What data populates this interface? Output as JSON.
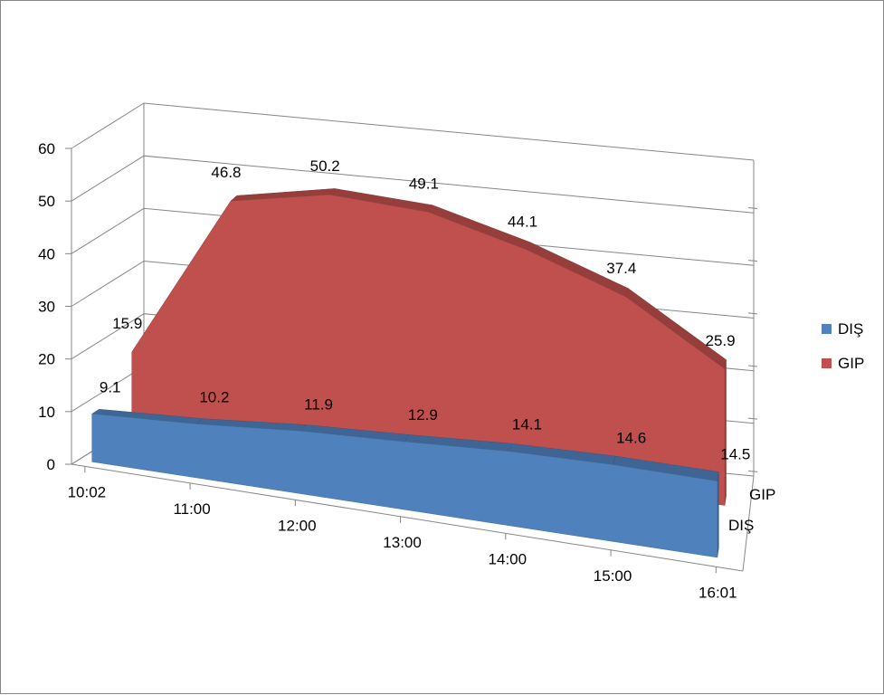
{
  "chart_data": {
    "type": "area",
    "title": "",
    "xlabel": "",
    "ylabel": "",
    "x_tick_labels": [
      "10:02",
      "11:00",
      "12:00",
      "13:00",
      "14:00",
      "15:00",
      "16:01"
    ],
    "ylim": [
      0,
      60
    ],
    "y_ticks": [
      0,
      10,
      20,
      30,
      40,
      50,
      60
    ],
    "y_tick_labels": [
      "0",
      "10",
      "20",
      "30",
      "40",
      "50",
      "60"
    ],
    "depth_axis_labels": [
      "DIŞ",
      "GIP"
    ],
    "grid": true,
    "legend_position": "right",
    "series": [
      {
        "name": "DIŞ",
        "color": "#4F81BD",
        "points": [
          {
            "x": "10:02",
            "y": 9.1
          },
          {
            "x": "11:00",
            "y": 10.2
          },
          {
            "x": "12:00",
            "y": 11.9
          },
          {
            "x": "13:00",
            "y": 12.9
          },
          {
            "x": "14:00",
            "y": 14.1
          },
          {
            "x": "15:00",
            "y": 14.6
          },
          {
            "x": "16:01",
            "y": 14.5
          }
        ],
        "labels": [
          "9.1",
          "10.2",
          "11.9",
          "12.9",
          "14.1",
          "14.6",
          "14.5"
        ]
      },
      {
        "name": "GIP",
        "color": "#C0504D",
        "points": [
          {
            "x": "10:02",
            "y": 15.9
          },
          {
            "x": "11:00",
            "y": 46.8
          },
          {
            "x": "12:00",
            "y": 50.2
          },
          {
            "x": "13:00",
            "y": 49.1
          },
          {
            "x": "14:00",
            "y": 44.1
          },
          {
            "x": "15:00",
            "y": 37.4
          },
          {
            "x": "16:01",
            "y": 25.9
          }
        ],
        "labels": [
          "15.9",
          "46.8",
          "50.2",
          "49.1",
          "44.1",
          "37.4",
          "25.9"
        ]
      }
    ]
  }
}
